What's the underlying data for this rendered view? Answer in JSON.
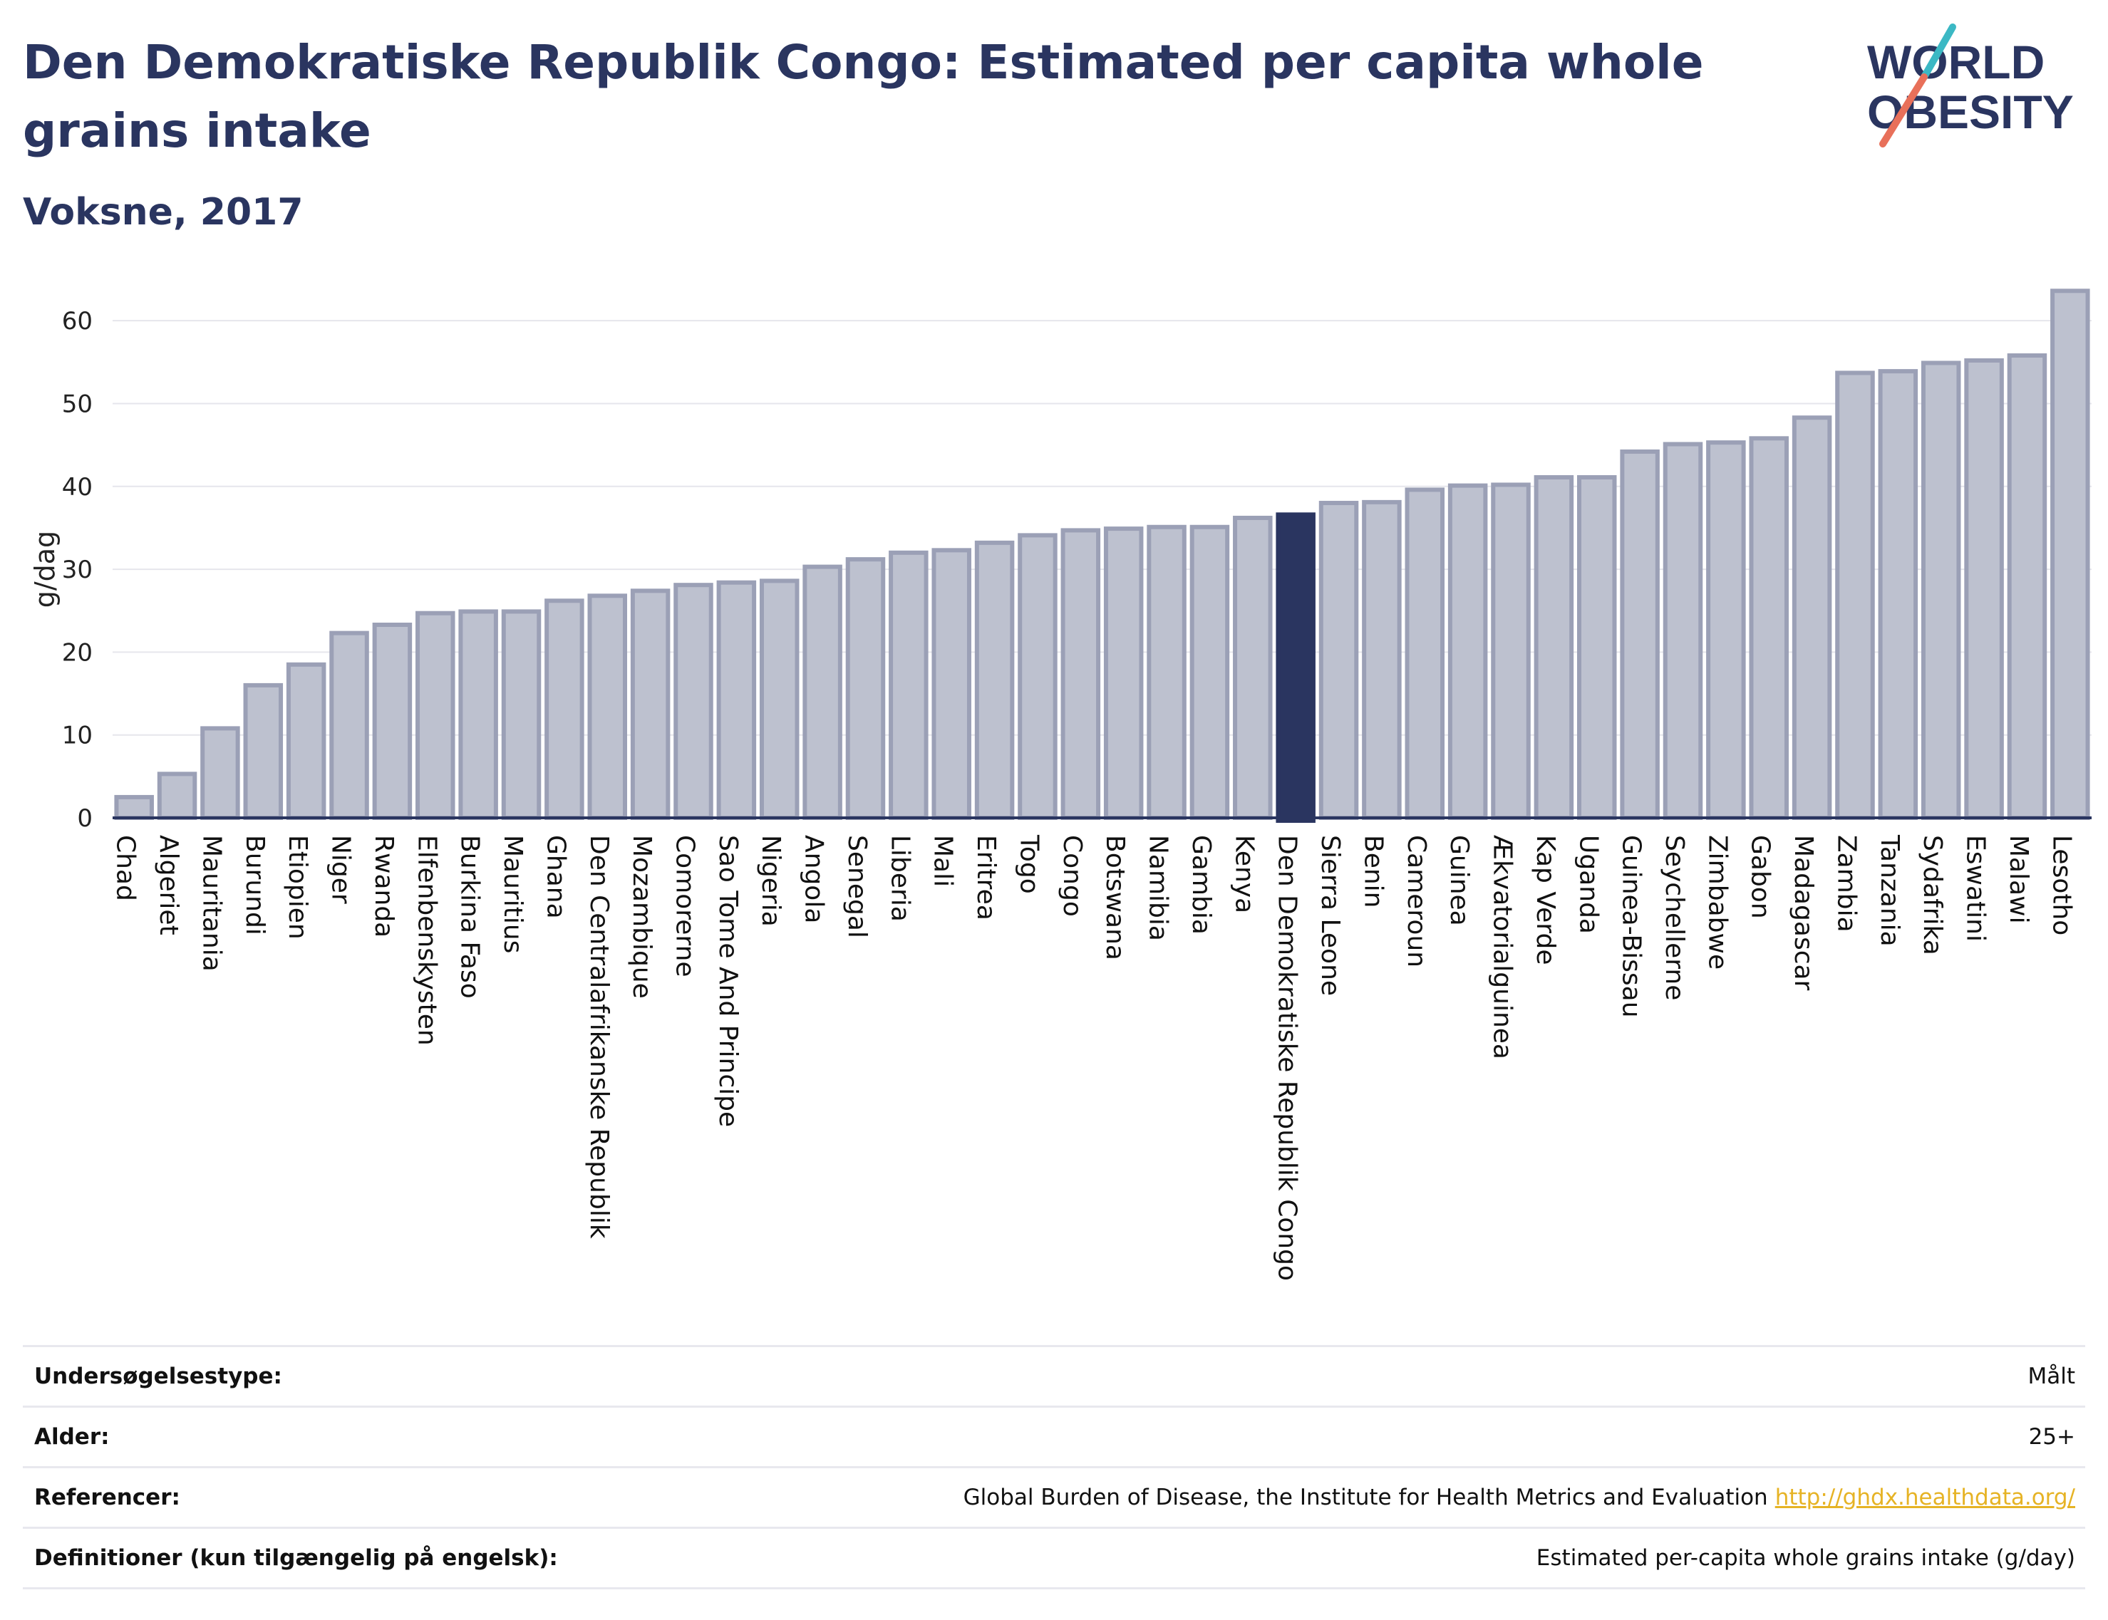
{
  "header": {
    "title": "Den Demokratiske Republik Congo: Estimated per capita whole grains intake",
    "subtitle": "Voksne, 2017"
  },
  "logo": {
    "line1": "WORLD",
    "line2": "OBESITY"
  },
  "colors": {
    "bar_fill": "#bdc1cf",
    "bar_stroke": "#9ba0b6",
    "highlight": "#2a3560",
    "grid": "#e6e6ec",
    "logo_teal": "#3bb8c4",
    "logo_coral": "#e8705a"
  },
  "chart_data": {
    "type": "bar",
    "title": "Den Demokratiske Republik Congo: Estimated per capita whole grains intake",
    "subtitle": "Voksne, 2017",
    "ylabel": "g/dag",
    "ylim": [
      0,
      65
    ],
    "yticks": [
      0,
      10,
      20,
      30,
      40,
      50,
      60
    ],
    "grid": true,
    "highlight": "Den Demokratiske Republik Congo",
    "categories": [
      "Chad",
      "Algeriet",
      "Mauritania",
      "Burundi",
      "Etiopien",
      "Niger",
      "Rwanda",
      "Elfenbenskysten",
      "Burkina Faso",
      "Mauritius",
      "Ghana",
      "Den Centralafrikanske Republik",
      "Mozambique",
      "Comorerne",
      "Sao Tome And Principe",
      "Nigeria",
      "Angola",
      "Senegal",
      "Liberia",
      "Mali",
      "Eritrea",
      "Togo",
      "Congo",
      "Botswana",
      "Namibia",
      "Gambia",
      "Kenya",
      "Den Demokratiske Republik Congo",
      "Sierra Leone",
      "Benin",
      "Cameroun",
      "Guinea",
      "Ækvatorialguinea",
      "Kap Verde",
      "Uganda",
      "Guinea-Bissau",
      "Seychellerne",
      "Zimbabwe",
      "Gabon",
      "Madagascar",
      "Zambia",
      "Tanzania",
      "Sydafrika",
      "Eswatini",
      "Malawi",
      "Lesotho"
    ],
    "values": [
      2.5,
      5.3,
      10.8,
      16.0,
      18.5,
      22.3,
      23.3,
      24.7,
      24.9,
      24.9,
      26.2,
      26.8,
      27.4,
      28.1,
      28.4,
      28.6,
      30.3,
      31.2,
      32.0,
      32.3,
      33.2,
      34.1,
      34.7,
      34.9,
      35.1,
      35.1,
      36.2,
      36.6,
      38.0,
      38.1,
      39.6,
      40.1,
      40.2,
      41.1,
      41.1,
      44.2,
      45.1,
      45.3,
      45.8,
      48.3,
      53.7,
      53.9,
      54.9,
      55.2,
      55.8,
      63.6
    ]
  },
  "info": [
    {
      "label": "Undersøgelsestype:",
      "value": "Målt"
    },
    {
      "label": "Alder:",
      "value": "25+"
    },
    {
      "label": "Referencer:",
      "value": "Global Burden of Disease, the Institute for Health Metrics and Evaluation",
      "link": "http://ghdx.healthdata.org/"
    },
    {
      "label": "Definitioner (kun tilgængelig på engelsk):",
      "value": "Estimated per-capita whole grains intake (g/day)"
    }
  ]
}
